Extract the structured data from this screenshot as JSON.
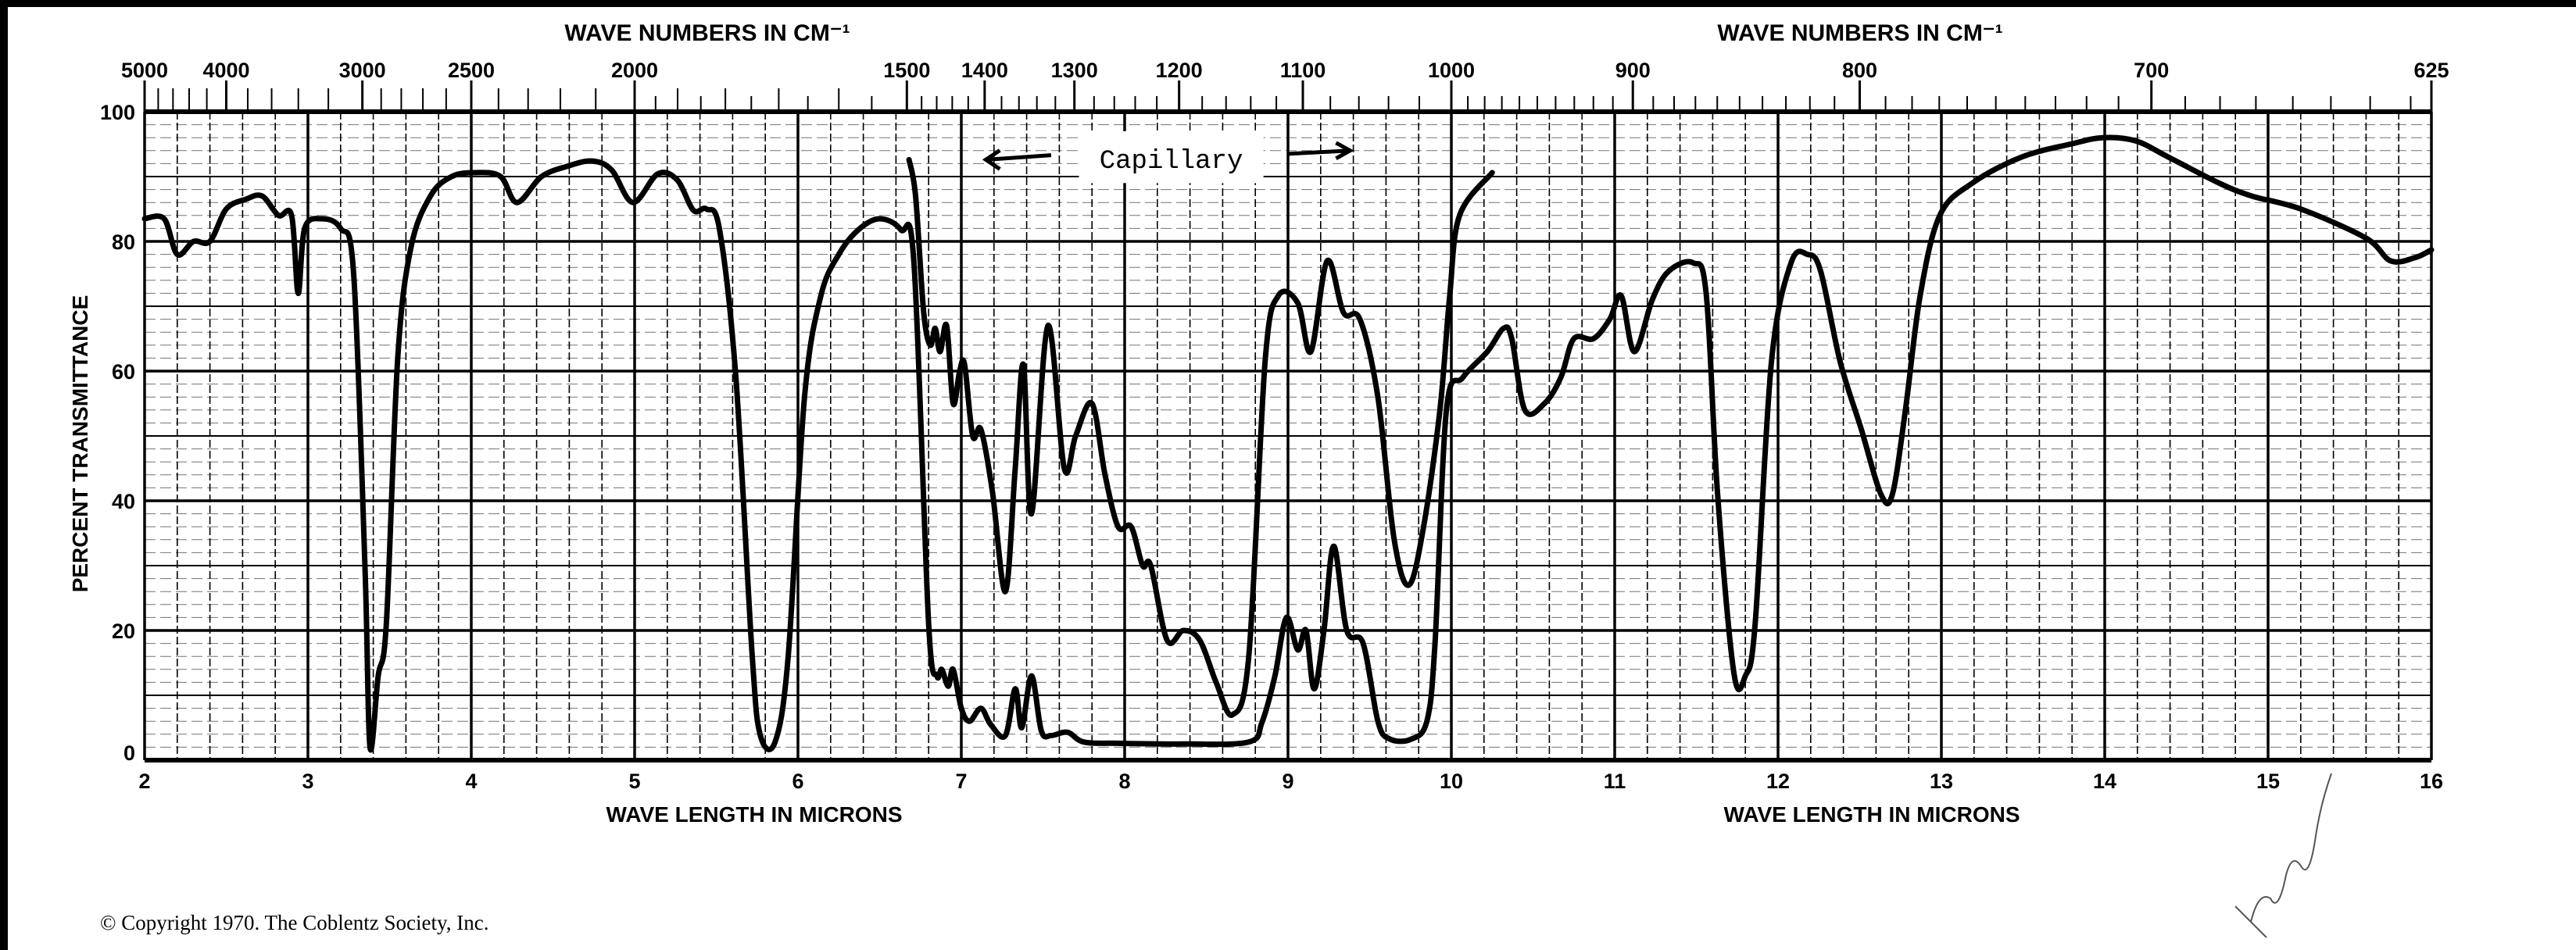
{
  "chart_data": {
    "type": "line",
    "title_top_left": "WAVE NUMBERS IN CM⁻¹",
    "title_top_right": "WAVE NUMBERS IN CM⁻¹",
    "xlabel_left": "WAVE LENGTH IN MICRONS",
    "xlabel_right": "WAVE LENGTH IN MICRONS",
    "ylabel": "PERCENT TRANSMITTANCE",
    "xlim": [
      2,
      16
    ],
    "ylim": [
      0,
      100
    ],
    "grid": true,
    "x_ticks": [
      "2",
      "3",
      "4",
      "5",
      "6",
      "7",
      "8",
      "9",
      "10",
      "11",
      "12",
      "13",
      "14",
      "15",
      "16"
    ],
    "y_ticks": [
      "0",
      "20",
      "40",
      "60",
      "80",
      "100"
    ],
    "top_ticks": [
      "5000",
      "4000",
      "3000",
      "2500",
      "2000",
      "1500",
      "1400",
      "1300",
      "1200",
      "1100",
      "1000",
      "900",
      "800",
      "700",
      "625"
    ],
    "annotation": "Capillary",
    "series": [
      {
        "name": "main",
        "x": [
          2.0,
          2.12,
          2.2,
          2.3,
          2.4,
          2.5,
          2.62,
          2.72,
          2.82,
          2.9,
          2.94,
          2.98,
          3.08,
          3.2,
          3.28,
          3.35,
          3.38,
          3.43,
          3.48,
          3.55,
          3.63,
          3.75,
          3.88,
          4.03,
          4.18,
          4.28,
          4.43,
          4.59,
          4.74,
          4.86,
          4.99,
          5.14,
          5.26,
          5.36,
          5.44,
          5.52,
          5.62,
          5.72,
          5.77,
          5.86,
          5.94,
          6.04,
          6.14,
          6.25,
          6.37,
          6.5,
          6.63,
          6.71,
          6.8,
          6.85,
          6.88,
          6.92,
          6.95,
          7.0,
          7.05,
          7.12,
          7.18,
          7.27,
          7.33,
          7.37,
          7.43,
          7.49,
          7.55,
          7.65,
          7.75,
          7.96,
          8.36,
          8.76,
          8.84,
          8.92,
          8.99,
          9.06,
          9.11,
          9.16,
          9.22,
          9.28,
          9.36,
          9.46,
          9.55,
          9.62,
          9.75,
          9.85,
          9.9,
          9.97,
          10.07,
          10.22,
          10.32,
          10.37,
          10.45,
          10.57,
          10.67,
          10.75,
          10.87,
          10.97,
          11.04,
          11.12,
          11.23,
          11.33,
          11.48,
          11.56,
          11.63,
          11.73,
          11.8,
          11.86,
          11.96,
          12.08,
          12.18,
          12.26,
          12.38,
          12.51,
          12.63,
          12.7,
          12.78,
          12.87,
          12.99,
          13.19,
          13.49,
          13.79,
          13.99,
          14.19,
          14.39,
          14.7,
          14.9,
          15.2,
          15.6,
          15.75,
          15.9,
          16.0
        ],
        "y": [
          83.5,
          83.5,
          78,
          80,
          80,
          85,
          86.5,
          87,
          84,
          84,
          72,
          82,
          83.5,
          82,
          75,
          29,
          2,
          13,
          21,
          62,
          79,
          87,
          90,
          90.6,
          90,
          86,
          90,
          91.6,
          92.4,
          91,
          86,
          90.4,
          89.5,
          84.8,
          85,
          81.8,
          59,
          16,
          3.8,
          2.8,
          16,
          56,
          71.6,
          78,
          81.8,
          83.5,
          81.8,
          76.7,
          21,
          13,
          14,
          11.4,
          14,
          8,
          6,
          8,
          5.5,
          3.8,
          11,
          5,
          13,
          4.5,
          3.8,
          4.3,
          2.8,
          2.6,
          2.5,
          2.8,
          5.8,
          13,
          22,
          17,
          20,
          11,
          20,
          33,
          20,
          18,
          6,
          3.3,
          3.2,
          6,
          18,
          54,
          59,
          63,
          66.6,
          65,
          54,
          55,
          59,
          65,
          65,
          68,
          71.6,
          63,
          71,
          75.4,
          76.7,
          72,
          41,
          13.4,
          13,
          21,
          61.5,
          76.7,
          78,
          75.5,
          61.5,
          51,
          41,
          41,
          54,
          71.6,
          84,
          89,
          93,
          95,
          96,
          95.5,
          93,
          89,
          87,
          85,
          80.5,
          77,
          77.5,
          78.7
        ]
      },
      {
        "name": "capillary",
        "x": [
          6.68,
          6.72,
          6.77,
          6.81,
          6.84,
          6.87,
          6.91,
          6.95,
          6.99,
          7.02,
          7.07,
          7.12,
          7.19,
          7.27,
          7.33,
          7.38,
          7.43,
          7.53,
          7.63,
          7.7,
          7.8,
          7.88,
          7.96,
          8.04,
          8.11,
          8.16,
          8.26,
          8.36,
          8.46,
          8.56,
          8.66,
          8.76,
          8.86,
          8.94,
          9.06,
          9.14,
          9.24,
          9.34,
          9.44,
          9.55,
          9.65,
          9.74,
          9.83,
          9.93,
          9.99,
          10.05,
          10.25
        ],
        "y": [
          92.6,
          87,
          69,
          64,
          66.6,
          63,
          67,
          55,
          60,
          61,
          50,
          51,
          41.5,
          26,
          45,
          61,
          38,
          67,
          45,
          50,
          55,
          44,
          36,
          36,
          30,
          30,
          18.5,
          20,
          18.5,
          12,
          7,
          16,
          61.5,
          71.6,
          70.5,
          63,
          77,
          69,
          68,
          56,
          34,
          27,
          36,
          54,
          71.6,
          84,
          90.6
        ]
      }
    ]
  },
  "footer": {
    "copyright": "© Copyright 1970.  The Coblentz Society, Inc."
  },
  "colors": {
    "ink": "#000000",
    "paper": "#ffffff"
  }
}
